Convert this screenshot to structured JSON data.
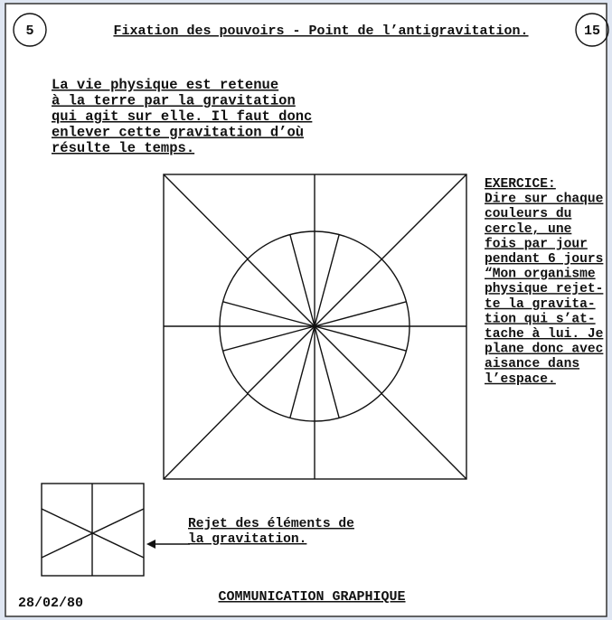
{
  "header": {
    "left_number": "5",
    "title": "Fixation des pouvoirs - Point de l’antigravitation.",
    "right_number": "15"
  },
  "intro": [
    "La vie physique est retenue",
    "à la terre par la gravitation",
    "qui agit sur elle. Il faut donc",
    "enlever cette gravitation d’où",
    "résulte le temps."
  ],
  "exercise": [
    "EXERCICE:",
    "Dire sur chaque",
    "couleurs du",
    "cercle, une",
    "fois par jour",
    "pendant 6 jours",
    "“Mon organisme",
    "physique rejet-",
    "te la gravita-",
    "tion qui s’at-",
    "tache à lui. Je",
    "plane donc avec",
    "aisance dans",
    "l’espace."
  ],
  "caption": [
    "Rejet des éléments de",
    "la gravitation."
  ],
  "footer": {
    "title": "COMMUNICATION GRAPHIQUE",
    "date": "28/02/80"
  }
}
